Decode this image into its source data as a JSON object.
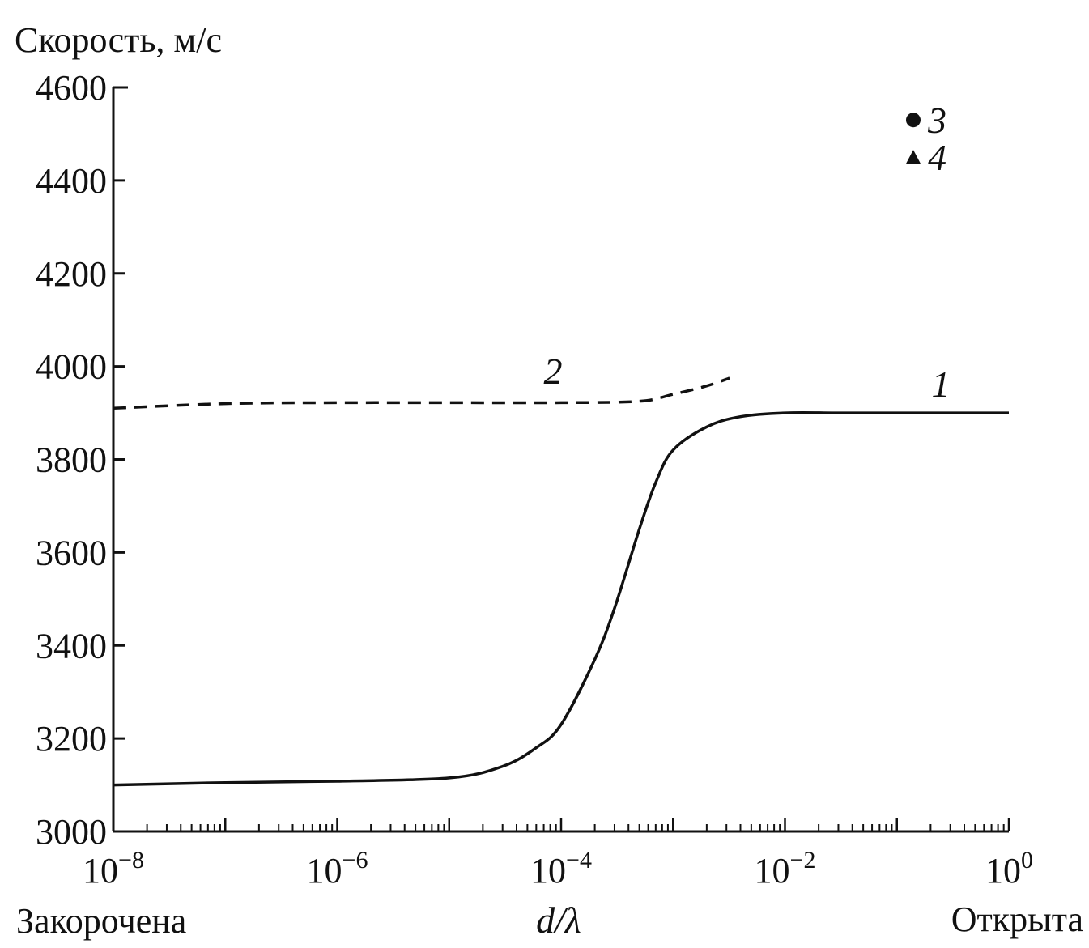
{
  "chart_data": {
    "type": "line",
    "ylabel": "Скорость, м/с",
    "xlabel": "d/λ",
    "x_scale": "log",
    "xlim": [
      1e-08,
      1
    ],
    "ylim": [
      3000,
      4600
    ],
    "y_ticks": [
      3000,
      3200,
      3400,
      3600,
      3800,
      4000,
      4200,
      4400,
      4600
    ],
    "x_ticks": [
      {
        "value": 1e-08,
        "base": "10",
        "exp": "−8"
      },
      {
        "value": 1e-06,
        "base": "10",
        "exp": "−6"
      },
      {
        "value": 0.0001,
        "base": "10",
        "exp": "−4"
      },
      {
        "value": 0.01,
        "base": "10",
        "exp": "−2"
      },
      {
        "value": 1,
        "base": "10",
        "exp": "0"
      }
    ],
    "x_left_annotation": "Закорочена",
    "x_right_annotation": "Открыта",
    "series": [
      {
        "name": "1",
        "style": "solid",
        "x": [
          1e-08,
          1e-07,
          1e-06,
          1e-05,
          3e-05,
          6e-05,
          0.0001,
          0.0002,
          0.0003,
          0.0005,
          0.0007,
          0.001,
          0.002,
          0.004,
          0.01,
          0.03,
          0.1,
          1
        ],
        "y": [
          3100,
          3105,
          3108,
          3115,
          3140,
          3180,
          3230,
          3370,
          3480,
          3650,
          3750,
          3820,
          3870,
          3892,
          3900,
          3900,
          3900,
          3900
        ]
      },
      {
        "name": "2",
        "style": "dashed",
        "x": [
          1e-08,
          1e-07,
          1e-06,
          1e-05,
          0.0001,
          0.0005,
          0.001,
          0.002,
          0.0032
        ],
        "y": [
          3910,
          3920,
          3922,
          3922,
          3922,
          3925,
          3940,
          3958,
          3975
        ]
      }
    ],
    "markers": [
      {
        "name": "3",
        "shape": "circle",
        "y": 4530
      },
      {
        "name": "4",
        "shape": "triangle",
        "y": 4450
      }
    ]
  }
}
